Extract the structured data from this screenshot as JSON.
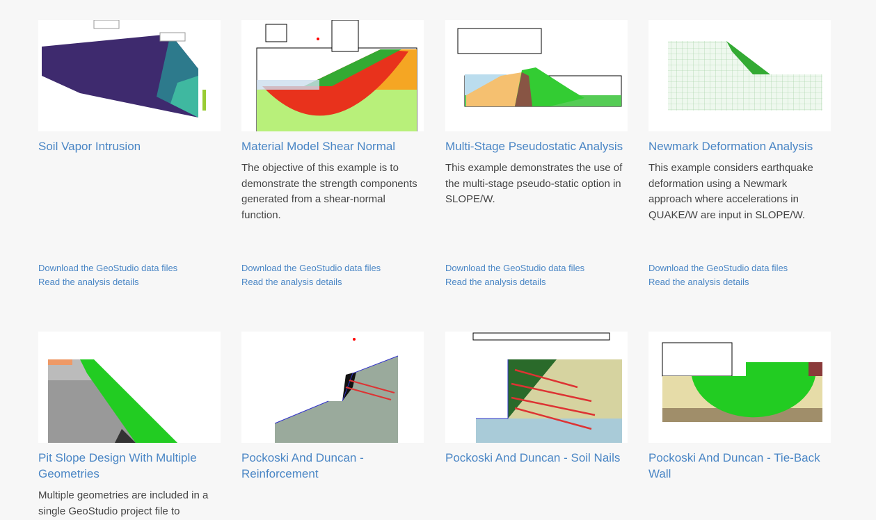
{
  "accent_color": "#4a86c5",
  "cards": [
    {
      "title": "Soil Vapor Intrusion",
      "description": "",
      "download": "Download the GeoStudio data files",
      "details": "Read the analysis details"
    },
    {
      "title": "Material Model Shear Normal",
      "description": "The objective of this example is to demonstrate the strength components generated from a shear-normal function.",
      "download": "Download the GeoStudio data files",
      "details": "Read the analysis details"
    },
    {
      "title": "Multi-Stage Pseudostatic Analysis",
      "description": "This example demonstrates the use of the multi-stage pseudo-static option in SLOPE/W.",
      "download": "Download the GeoStudio data files",
      "details": "Read the analysis details"
    },
    {
      "title": "Newmark Deformation Analysis",
      "description": "This example considers earthquake deformation using a Newmark approach where accelerations in QUAKE/W are input in SLOPE/W.",
      "download": "Download the GeoStudio data files",
      "details": "Read the analysis details"
    },
    {
      "title": "Pit Slope Design With Multiple Geometries",
      "description": "Multiple geometries are included in a single GeoStudio project file to"
    },
    {
      "title": "Pockoski And Duncan - Reinforcement",
      "description": ""
    },
    {
      "title": "Pockoski And Duncan - Soil Nails",
      "description": ""
    },
    {
      "title": "Pockoski And Duncan - Tie-Back Wall",
      "description": ""
    }
  ]
}
